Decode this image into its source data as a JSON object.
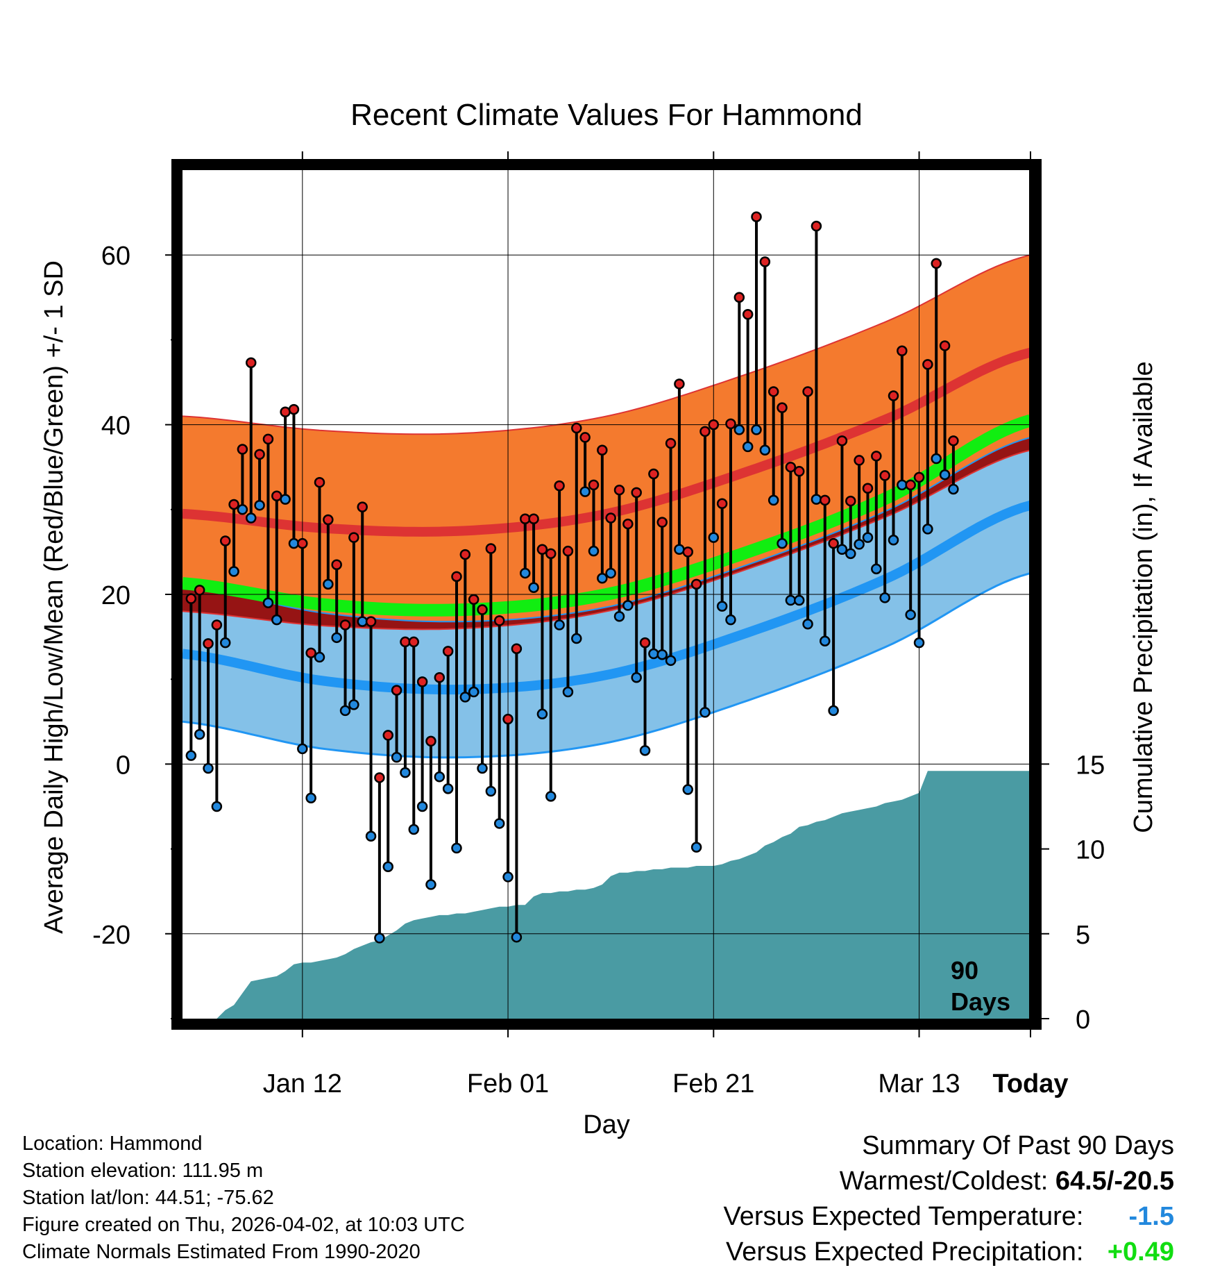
{
  "chart_data": {
    "type": "line",
    "title": "Recent Climate Values For Hammond",
    "xlabel": "Day",
    "ylabel": "Average Daily High/Low/Mean (Red/Blue/Green) +/- 1 SD",
    "y2label": "Cumulative Precipitation (in), If Available",
    "ylim": [
      -30,
      70
    ],
    "y_ticks": [
      "60",
      "40",
      "20",
      "0",
      "-20"
    ],
    "y2lim": [
      0,
      50
    ],
    "y2_ticks": [
      "15",
      "10",
      "5",
      "0"
    ],
    "x_tick_labels": [
      "Jan 12",
      "Feb 01",
      "Feb 21",
      "Mar 13",
      "Today"
    ],
    "today_marker": "90\nDays",
    "today_marker_lines": [
      "90",
      "Days"
    ],
    "normals": {
      "high_mean": [
        29.5,
        27.8,
        27.5,
        29.5,
        34.5,
        40.8,
        48.5
      ],
      "high_sd": 11.5,
      "low_mean": [
        13.0,
        9.8,
        8.8,
        10.5,
        15.5,
        22.0,
        30.5
      ],
      "low_sd": 8.0,
      "avg_mean": [
        21.3,
        18.8,
        18.2,
        20.0,
        25.0,
        31.5,
        40.5
      ]
    },
    "daily_highs": [
      19.5,
      20.5,
      14.2,
      16.4,
      26.3,
      30.6,
      37.1,
      47.3,
      36.5,
      38.3,
      31.6,
      41.5,
      41.8,
      26.0,
      13.1,
      33.2,
      28.8,
      23.5,
      16.4,
      26.7,
      30.3,
      16.8,
      -1.6,
      3.4,
      8.7,
      14.4,
      14.4,
      9.7,
      2.7,
      10.2,
      13.3,
      22.1,
      24.7,
      19.4,
      18.2,
      25.4,
      16.9,
      5.3,
      13.6,
      28.9,
      28.9,
      25.3,
      24.8,
      32.8,
      25.1,
      39.6,
      38.5,
      32.9,
      37.0,
      29.0,
      32.3,
      28.3,
      32.0,
      14.3,
      34.2,
      28.5,
      37.8,
      44.8,
      25.0,
      21.2,
      39.2,
      40.0,
      30.7,
      40.1,
      55.0,
      53.0,
      64.5,
      59.2,
      43.9,
      42.0,
      35.0,
      34.5,
      43.9,
      63.4,
      31.1,
      26.0,
      38.1,
      31.0,
      35.8,
      32.5,
      36.3,
      34.0,
      43.4,
      48.7,
      32.9,
      33.8,
      47.1,
      59.0,
      49.3,
      38.1
    ],
    "daily_lows": [
      1.0,
      3.5,
      -0.5,
      -5.0,
      14.3,
      22.7,
      30.0,
      29.0,
      30.5,
      19.0,
      17.0,
      31.2,
      26.0,
      1.8,
      -4.0,
      12.6,
      21.2,
      14.9,
      6.3,
      7.0,
      16.8,
      -8.5,
      -20.5,
      -12.1,
      0.8,
      -1.0,
      -7.7,
      -5.0,
      -14.2,
      -1.5,
      -2.9,
      -9.9,
      7.9,
      8.5,
      -0.5,
      -3.2,
      -7.0,
      -13.3,
      -20.4,
      22.5,
      20.8,
      5.9,
      -3.8,
      16.4,
      8.5,
      14.8,
      32.1,
      25.1,
      21.9,
      22.5,
      17.4,
      18.7,
      10.2,
      1.6,
      13.0,
      12.9,
      12.2,
      25.3,
      -3.0,
      -9.8,
      6.1,
      26.7,
      18.6,
      17.0,
      39.4,
      37.4,
      39.4,
      37.0,
      31.1,
      26.0,
      19.3,
      19.3,
      16.5,
      31.2,
      14.5,
      6.3,
      25.3,
      24.8,
      25.9,
      26.7,
      23.0,
      19.6,
      26.4,
      32.9,
      17.6,
      14.3,
      27.7,
      36.0,
      34.1,
      32.4
    ],
    "cumulative_precip_in": [
      0,
      0,
      0,
      0,
      0,
      0.5,
      0.8,
      1.5,
      2.2,
      2.3,
      2.4,
      2.5,
      2.8,
      3.2,
      3.3,
      3.3,
      3.4,
      3.5,
      3.6,
      3.8,
      4.1,
      4.3,
      4.5,
      4.6,
      4.9,
      5.2,
      5.6,
      5.8,
      5.9,
      6.0,
      6.1,
      6.1,
      6.2,
      6.2,
      6.3,
      6.4,
      6.5,
      6.6,
      6.6,
      6.7,
      6.7,
      7.2,
      7.4,
      7.4,
      7.5,
      7.5,
      7.6,
      7.6,
      7.7,
      7.9,
      8.4,
      8.6,
      8.6,
      8.7,
      8.7,
      8.8,
      8.8,
      8.9,
      8.9,
      8.9,
      9.0,
      9.0,
      9.0,
      9.1,
      9.3,
      9.4,
      9.6,
      9.8,
      10.2,
      10.4,
      10.7,
      10.9,
      11.3,
      11.4,
      11.6,
      11.7,
      11.9,
      12.1,
      12.2,
      12.3,
      12.4,
      12.5,
      12.7,
      12.8,
      12.9,
      13.1,
      13.3,
      14.6,
      14.6,
      14.6
    ]
  },
  "info": {
    "location": "Location: Hammond",
    "elevation": "Station elevation: 111.95 m",
    "latlon": "Station lat/lon: 44.51; -75.62",
    "created": "Figure created on Thu, 2026-04-02, at 10:03 UTC",
    "normals_period": "Climate Normals Estimated From 1990-2020"
  },
  "summary": {
    "heading": "Summary Of Past 90 Days",
    "warmest_coldest_label": "Warmest/Coldest:",
    "warmest_coldest_value": "64.5/-20.5",
    "temp_label": "Versus Expected Temperature:",
    "temp_value": "-1.5",
    "precip_label": "Versus Expected Precipitation:",
    "precip_value": "+0.49"
  },
  "colors": {
    "high_band": "#f47a2e",
    "high_mean": "#dd3333",
    "overlap_band": "#961414",
    "avg_mean": "#11ee11",
    "low_band": "#84c1e8",
    "low_mean": "#2196f3",
    "low_edge": "#2196f3",
    "precip_fill": "#4a9ba3",
    "high_marker": "#dd2222",
    "low_marker": "#2288dd"
  }
}
